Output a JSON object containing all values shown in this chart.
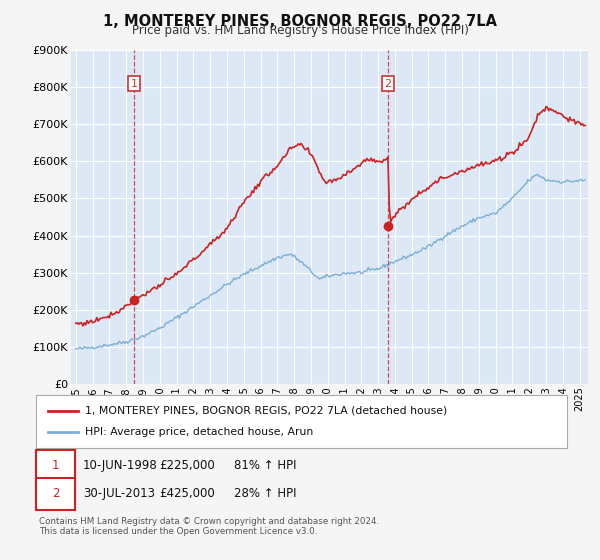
{
  "title": "1, MONTEREY PINES, BOGNOR REGIS, PO22 7LA",
  "subtitle": "Price paid vs. HM Land Registry's House Price Index (HPI)",
  "ylim": [
    0,
    900000
  ],
  "yticks": [
    0,
    100000,
    200000,
    300000,
    400000,
    500000,
    600000,
    700000,
    800000,
    900000
  ],
  "ytick_labels": [
    "£0",
    "£100K",
    "£200K",
    "£300K",
    "£400K",
    "£500K",
    "£600K",
    "£700K",
    "£800K",
    "£900K"
  ],
  "background_color": "#f5f5f5",
  "plot_bg_color": "#dce8f5",
  "grid_color": "#ffffff",
  "hpi_line_color": "#7bafd4",
  "price_line_color": "#cc2222",
  "marker_color": "#cc2222",
  "dashed_line_color": "#cc3333",
  "legend_label_price": "1, MONTEREY PINES, BOGNOR REGIS, PO22 7LA (detached house)",
  "legend_label_hpi": "HPI: Average price, detached house, Arun",
  "sale1_x": 1998.458,
  "sale1_price": 225000,
  "sale2_x": 2013.583,
  "sale2_price": 425000,
  "sale1_hpi_pct": "81% ↑ HPI",
  "sale2_hpi_pct": "28% ↑ HPI",
  "footnote1": "Contains HM Land Registry data © Crown copyright and database right 2024.",
  "footnote2": "This data is licensed under the Open Government Licence v3.0.",
  "xstart": 1994.7,
  "xend": 2025.5
}
